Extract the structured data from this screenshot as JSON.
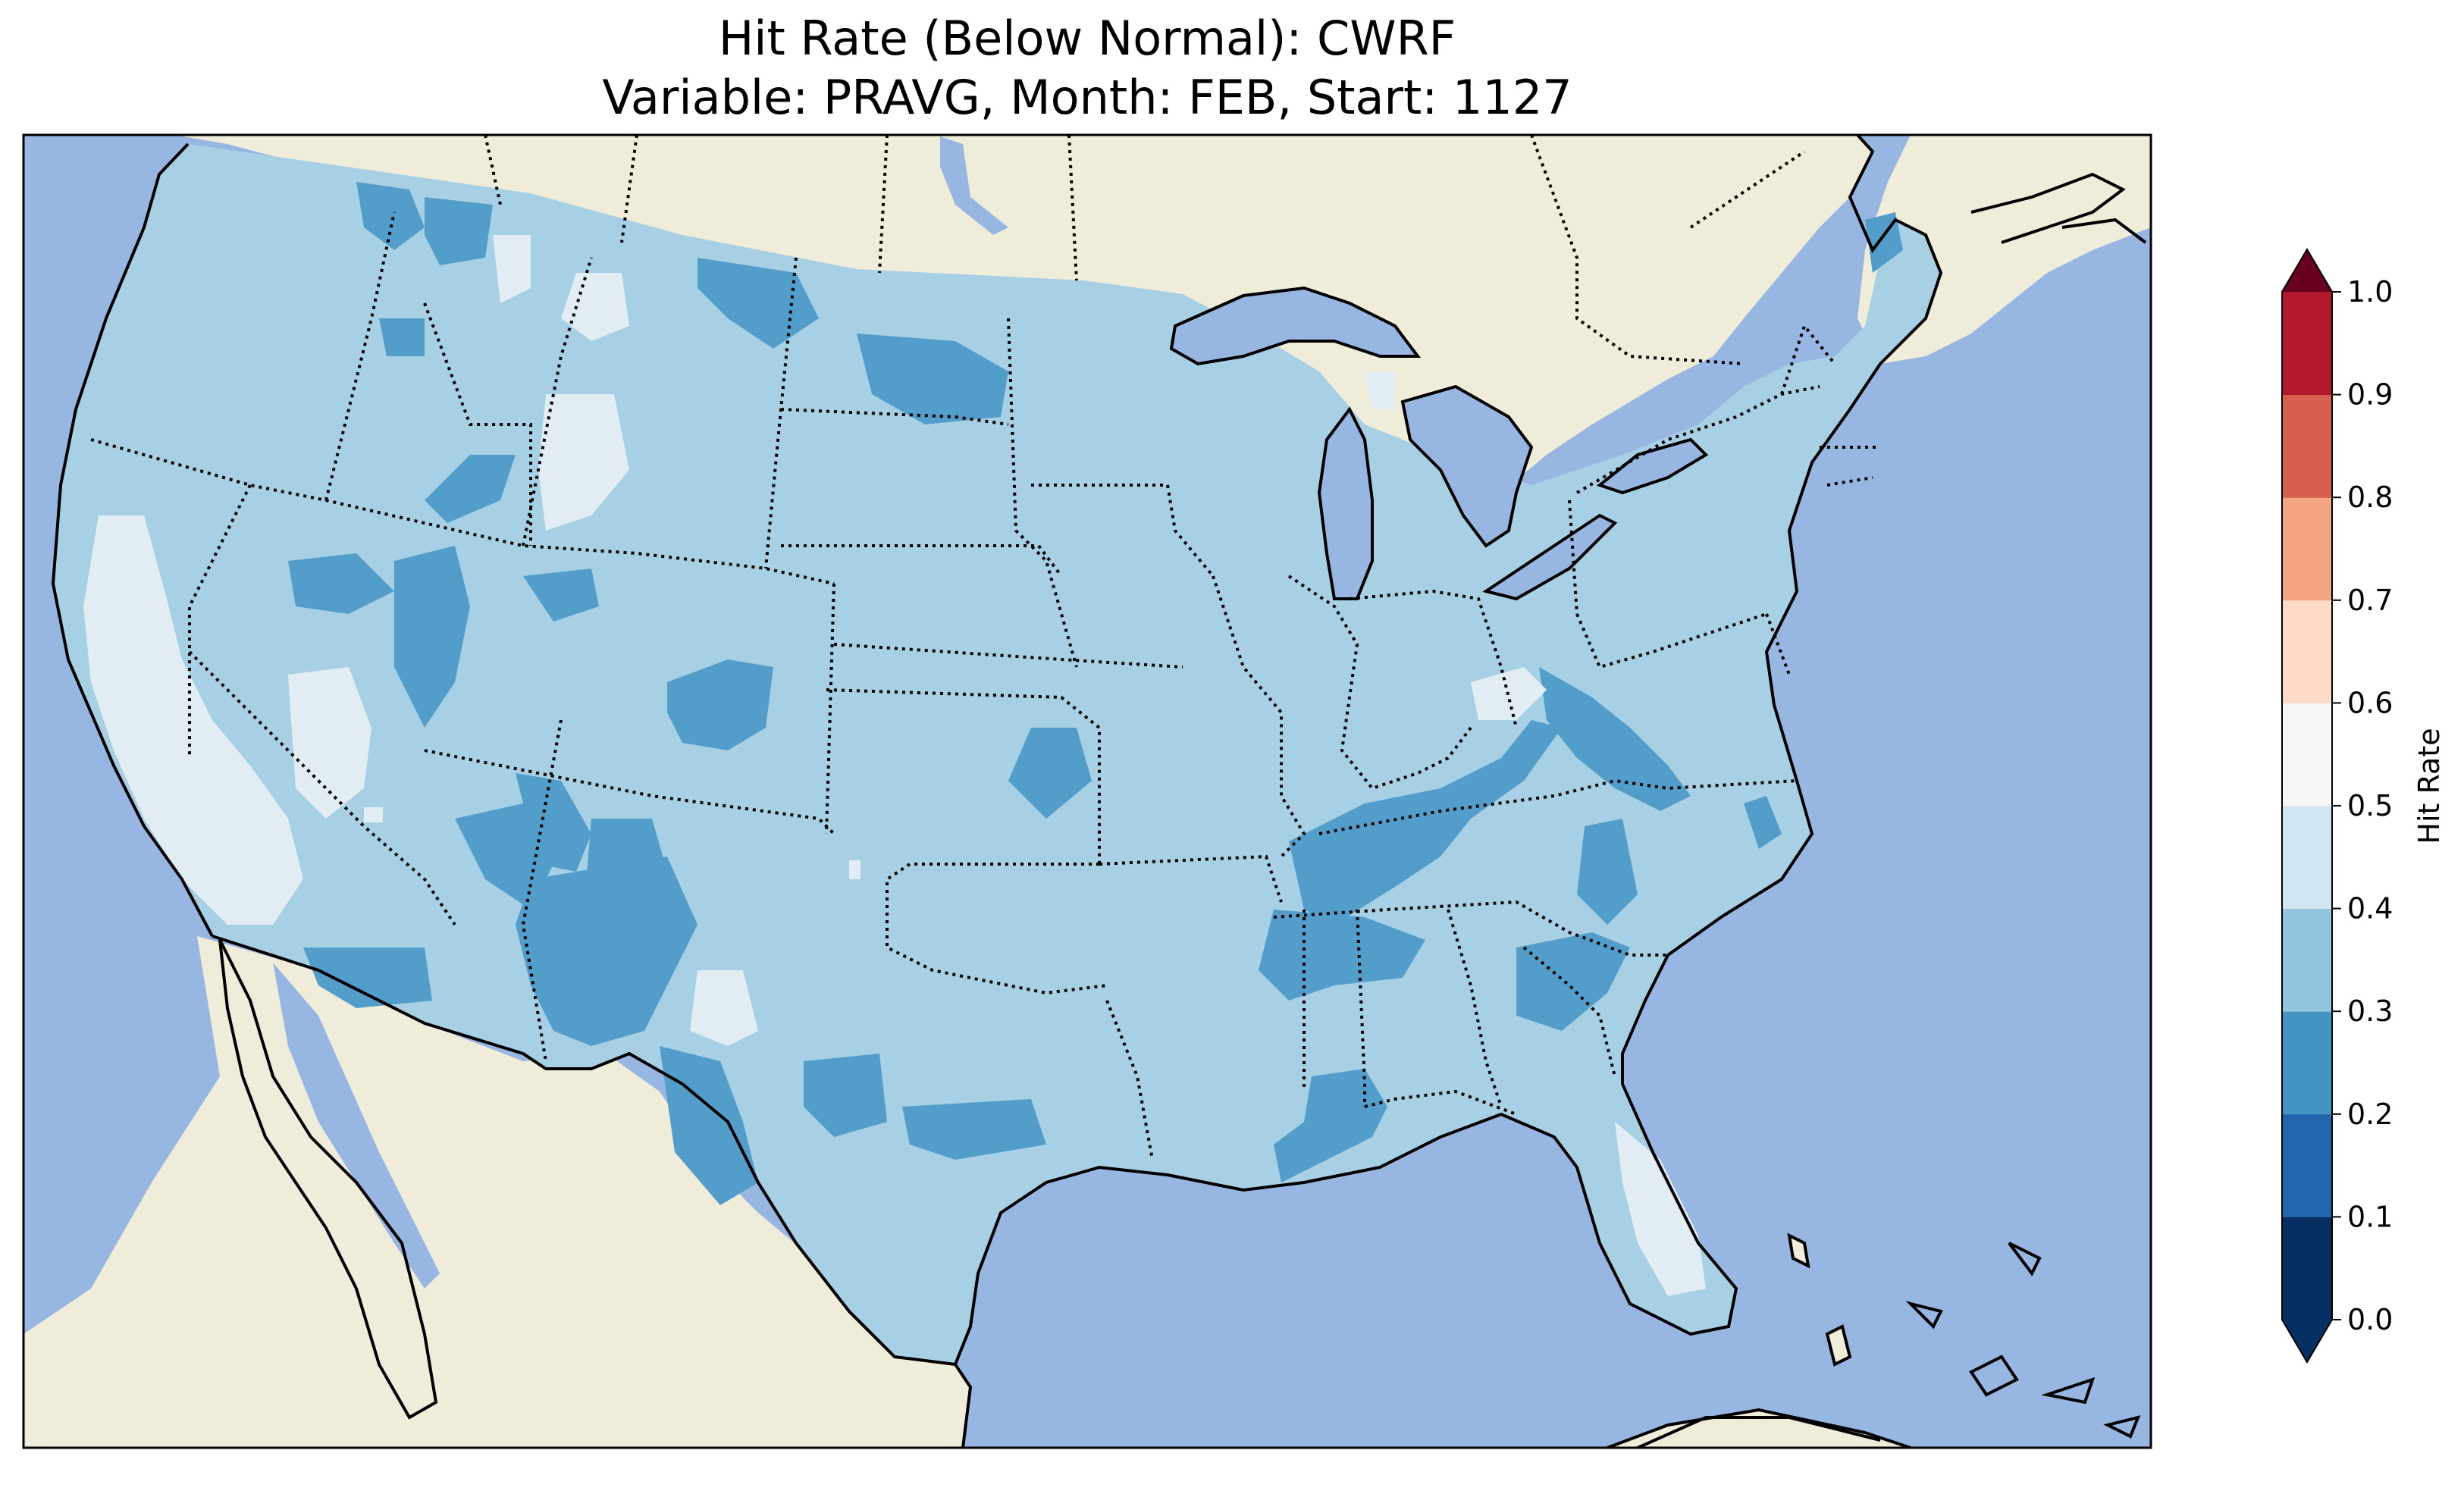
{
  "title": {
    "line1": "Hit Rate (Below Normal): CWRF",
    "line2": "Variable: PRAVG, Month: FEB, Start: 1127"
  },
  "map": {
    "region": "Contiguous United States",
    "ocean_color": "#97b6e1",
    "land_color": "#efecda",
    "field_fill_levels": [
      {
        "range": [
          0.2,
          0.3
        ],
        "color": "#539dcb",
        "description": "darker blue patches"
      },
      {
        "range": [
          0.3,
          0.4
        ],
        "color": "#a7d0e4",
        "description": "dominant light blue"
      },
      {
        "range": [
          0.4,
          0.5
        ],
        "color": "#e1edf3",
        "description": "near-white patches"
      }
    ],
    "boundaries": [
      "coastlines",
      "state borders (dotted)",
      "country borders"
    ]
  },
  "colorbar": {
    "label": "Hit Rate",
    "ticks": [
      "0.0",
      "0.1",
      "0.2",
      "0.3",
      "0.4",
      "0.5",
      "0.6",
      "0.7",
      "0.8",
      "0.9",
      "1.0"
    ],
    "colors": [
      "#053061",
      "#2166ac",
      "#4393c3",
      "#92c5de",
      "#d1e5f0",
      "#f7f7f7",
      "#fddbc7",
      "#f4a582",
      "#d6604d",
      "#b2182b",
      "#67001f"
    ],
    "extend": "both",
    "extend_min_color": "#053061",
    "extend_max_color": "#67001f"
  }
}
